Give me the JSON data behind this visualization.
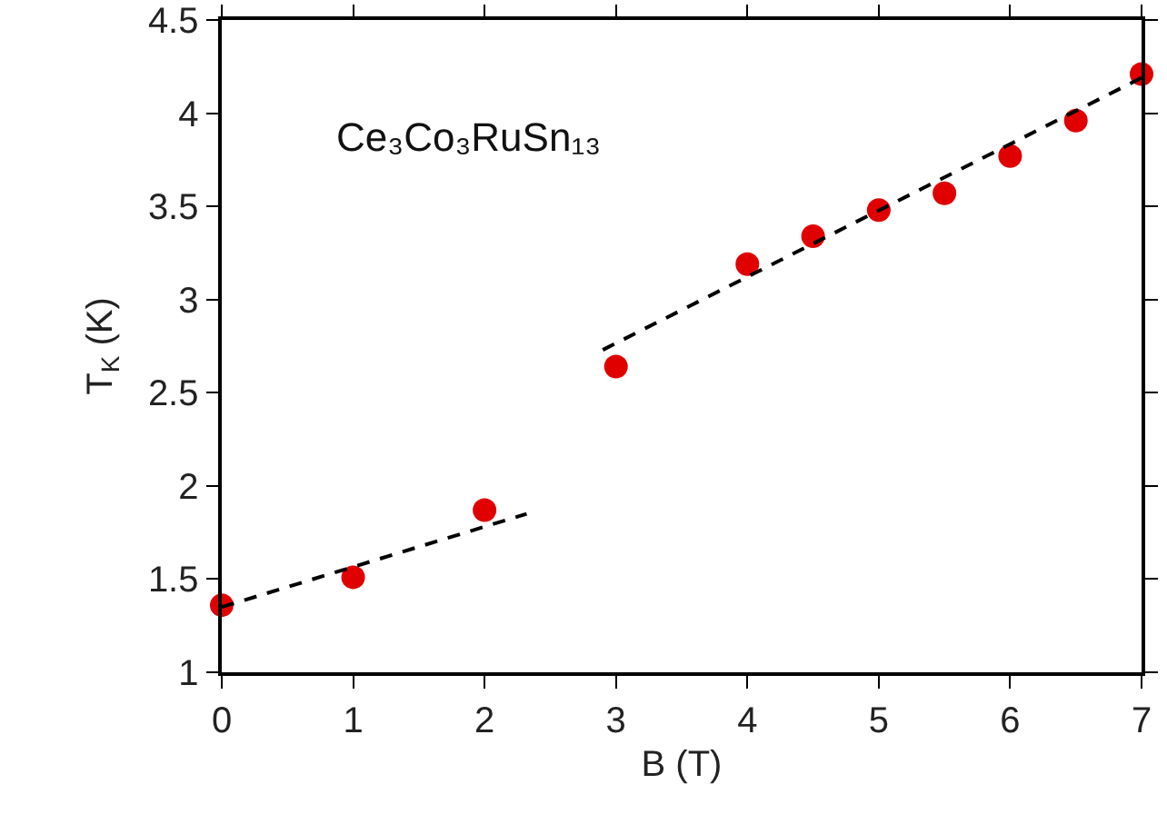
{
  "chart_data": {
    "type": "scatter",
    "xlabel": "B (T)",
    "ylabel": "T$_{K}$ (K)",
    "annotations": [
      "Ce₃Co₃RuSn₁₃"
    ],
    "x": [
      0,
      1,
      2,
      3,
      4,
      4.5,
      5,
      5.5,
      6,
      6.5,
      7
    ],
    "series": [
      {
        "color": "#e00000",
        "values": [
          1.36,
          1.51,
          1.87,
          2.64,
          3.19,
          3.34,
          3.48,
          3.57,
          3.77,
          3.96,
          4.21
        ]
      },
      {
        "type": "line",
        "color": "#000000",
        "line_style": "dashed",
        "marker": "none",
        "x": [
          0,
          2.32
        ],
        "values": [
          1.35,
          1.85
        ]
      },
      {
        "type": "line",
        "color": "#000000",
        "line_style": "dashed",
        "marker": "none",
        "x": [
          2.9,
          7
        ],
        "values": [
          2.73,
          4.19
        ]
      }
    ],
    "marker": "circle",
    "xlim": [
      0,
      7
    ],
    "xticks": [
      0,
      1,
      2,
      3,
      4,
      5,
      6,
      7
    ],
    "ylim": [
      1,
      4.5
    ],
    "yticks": [
      1,
      1.5,
      2,
      2.5,
      3,
      3.5,
      4,
      4.5
    ]
  }
}
